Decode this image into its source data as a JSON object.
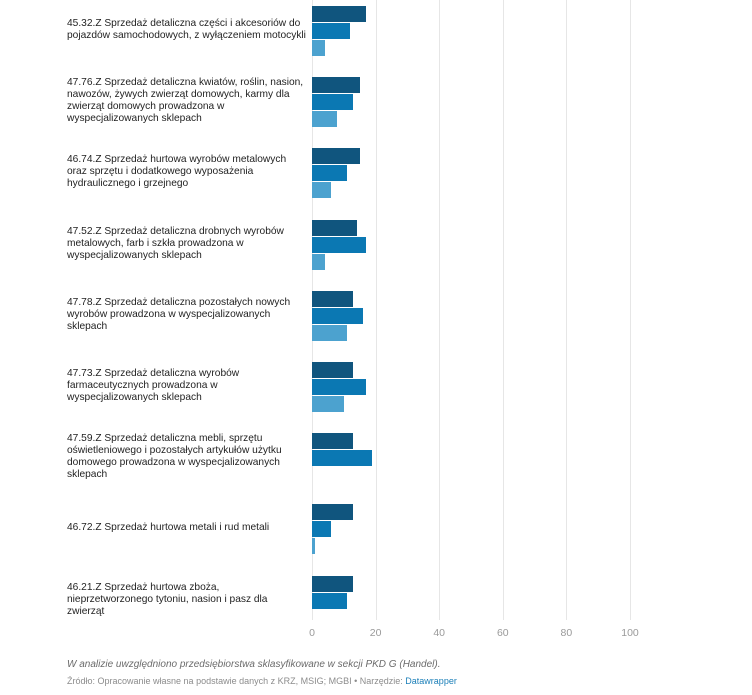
{
  "chart_data": {
    "type": "bar",
    "orientation": "horizontal",
    "categories": [
      "45.32.Z Sprzedaż detaliczna części i akcesoriów do pojazdów samochodowych, z wyłączeniem motocykli",
      "47.76.Z Sprzedaż detaliczna kwiatów, roślin, nasion, nawozów, żywych zwierząt domowych, karmy dla zwierząt domowych prowadzona w wyspecjalizowanych sklepach",
      "46.74.Z Sprzedaż hurtowa wyrobów metalowych oraz sprzętu i dodatkowego wyposażenia hydraulicznego i grzejnego",
      "47.52.Z Sprzedaż detaliczna drobnych wyrobów metalowych, farb i szkła prowadzona w wyspecjalizowanych sklepach",
      "47.78.Z Sprzedaż detaliczna pozostałych nowych wyrobów prowadzona w wyspecjalizowanych sklepach",
      "47.73.Z Sprzedaż detaliczna wyrobów farmaceutycznych prowadzona w wyspecjalizowanych sklepach",
      "47.59.Z Sprzedaż detaliczna mebli, sprzętu oświetleniowego i pozostałych artykułów użytku domowego prowadzona w wyspecjalizowanych sklepach",
      "46.72.Z Sprzedaż hurtowa metali i rud metali",
      "46.21.Z Sprzedaż hurtowa zboża, nieprzetworzonego tytoniu, nasion i pasz dla zwierząt"
    ],
    "series": [
      {
        "color": "#10557e",
        "values": [
          17,
          15,
          15,
          14,
          13,
          13,
          13,
          13,
          13
        ]
      },
      {
        "color": "#0b78b3",
        "values": [
          12,
          13,
          11,
          17,
          16,
          17,
          19,
          6,
          11
        ]
      },
      {
        "color": "#4ca2cf",
        "values": [
          4,
          8,
          6,
          4,
          11,
          10,
          0,
          1,
          0
        ]
      }
    ],
    "xlim": [
      0,
      100
    ],
    "xticks": [
      0,
      20,
      40,
      60,
      80,
      100
    ],
    "grid": true,
    "title": "",
    "xlabel": "",
    "ylabel": ""
  },
  "footer": {
    "note": "W analizie uwzględniono przedsiębiorstwa sklasyfikowane w sekcji PKD G (Handel).",
    "source_prefix": "Źródło: Opracowanie własne na podstawie danych z KRZ, MSIG; MGBI • Narzędzie: ",
    "tool": "Datawrapper"
  }
}
